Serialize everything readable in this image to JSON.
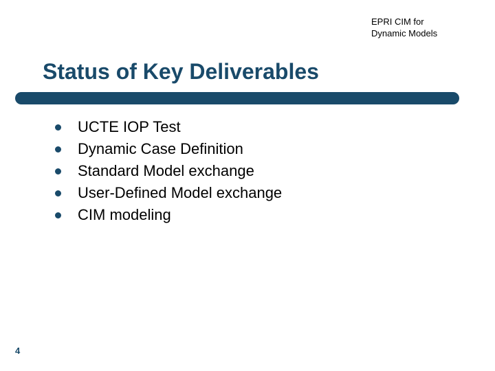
{
  "header": {
    "label_line1": "EPRI CIM for",
    "label_line2": "Dynamic Models"
  },
  "slide": {
    "title": "Status of Key Deliverables",
    "title_color": "#194a6a",
    "title_fontsize": 32,
    "underline_color": "#194a6a",
    "background_color": "#ffffff"
  },
  "bullets": {
    "items": [
      {
        "text": "UCTE IOP Test"
      },
      {
        "text": "Dynamic Case Definition"
      },
      {
        "text": "Standard Model exchange"
      },
      {
        "text": "User-Defined Model exchange"
      },
      {
        "text": "CIM modeling"
      }
    ],
    "bullet_color": "#194a6a",
    "text_color": "#000000",
    "text_fontsize": 22
  },
  "footer": {
    "page_number": "4",
    "page_number_color": "#194a6a"
  }
}
